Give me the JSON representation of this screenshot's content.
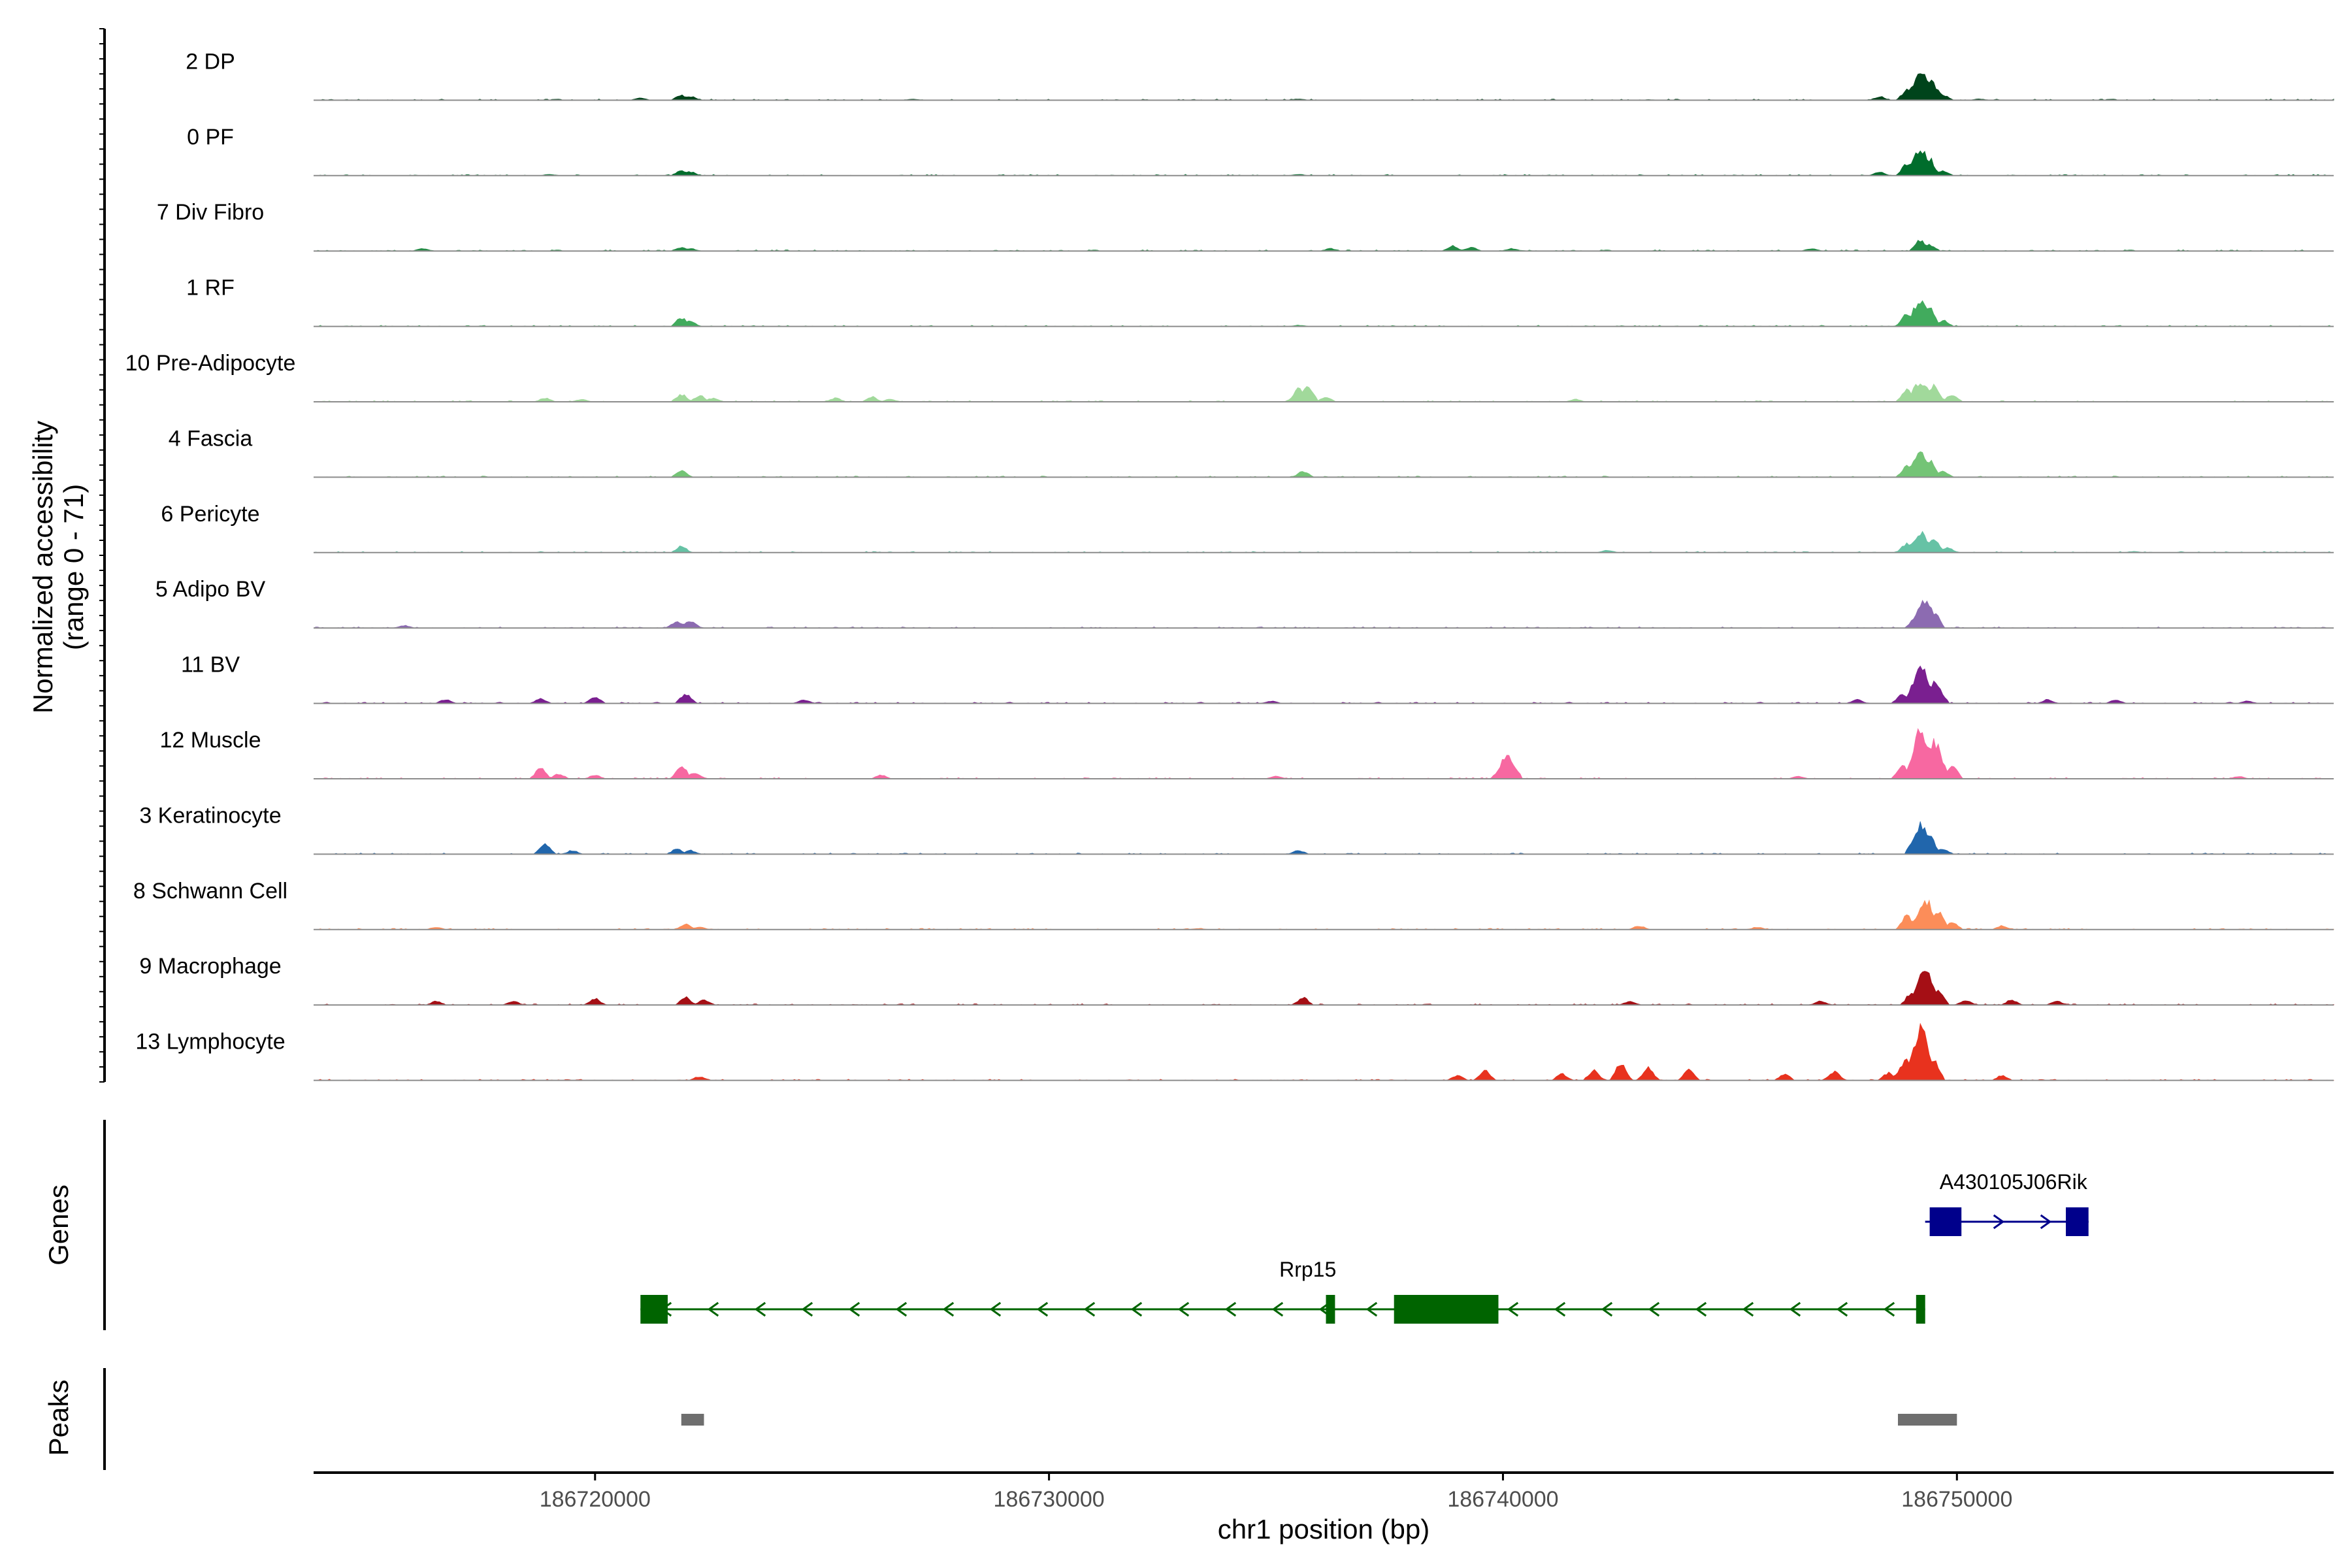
{
  "chart_data": {
    "type": "area",
    "title": "",
    "ylabel_line1": "Normalized accessibility",
    "ylabel_line2": "(range 0 - 71)",
    "genes_label": "Genes",
    "peaks_label": "Peaks",
    "xlabel": "chr1 position (bp)",
    "xlim": [
      186713800,
      186758300
    ],
    "ylim": [
      0,
      71
    ],
    "x_ticks": [
      "186720000",
      "186730000",
      "186740000",
      "186750000"
    ],
    "x_tick_values": [
      186720000,
      186730000,
      186740000,
      186750000
    ],
    "tracks": [
      {
        "name": "2 DP",
        "color": "#00441b",
        "peaks": [
          [
            186721000,
            2
          ],
          [
            186721900,
            4
          ],
          [
            186722100,
            3
          ],
          [
            186727000,
            1
          ],
          [
            186735500,
            1
          ],
          [
            186748300,
            3
          ],
          [
            186748900,
            8
          ],
          [
            186749200,
            22
          ],
          [
            186749400,
            16
          ],
          [
            186749700,
            4
          ],
          [
            186750500,
            1
          ]
        ]
      },
      {
        "name": "0 PF",
        "color": "#006d2c",
        "peaks": [
          [
            186719000,
            1
          ],
          [
            186721900,
            4
          ],
          [
            186722100,
            3
          ],
          [
            186735500,
            1
          ],
          [
            186748300,
            3
          ],
          [
            186748900,
            9
          ],
          [
            186749200,
            20
          ],
          [
            186749400,
            13
          ],
          [
            186749700,
            4
          ]
        ]
      },
      {
        "name": "7 Div Fibro",
        "color": "#238b45",
        "peaks": [
          [
            186716200,
            2
          ],
          [
            186721900,
            3
          ],
          [
            186722100,
            2
          ],
          [
            186736200,
            2
          ],
          [
            186738900,
            4
          ],
          [
            186739300,
            3
          ],
          [
            186740200,
            2
          ],
          [
            186746800,
            2
          ],
          [
            186749200,
            9
          ],
          [
            186749400,
            5
          ]
        ]
      },
      {
        "name": "1 RF",
        "color": "#41ab5d",
        "peaks": [
          [
            186721900,
            7
          ],
          [
            186722100,
            4
          ],
          [
            186735500,
            1
          ],
          [
            186748900,
            11
          ],
          [
            186749200,
            21
          ],
          [
            186749400,
            14
          ],
          [
            186749700,
            5
          ]
        ]
      },
      {
        "name": "10 Pre-Adipocyte",
        "color": "#a1d99b",
        "peaks": [
          [
            186718900,
            3
          ],
          [
            186719700,
            2
          ],
          [
            186721900,
            6
          ],
          [
            186722300,
            5
          ],
          [
            186722600,
            3
          ],
          [
            186725300,
            3
          ],
          [
            186726100,
            4
          ],
          [
            186726500,
            2
          ],
          [
            186735500,
            10
          ],
          [
            186735700,
            13
          ],
          [
            186736100,
            4
          ],
          [
            186741600,
            2
          ],
          [
            186748900,
            10
          ],
          [
            186749200,
            16
          ],
          [
            186749500,
            13
          ],
          [
            186749900,
            6
          ]
        ]
      },
      {
        "name": "4 Fascia",
        "color": "#74c476",
        "peaks": [
          [
            186721900,
            5
          ],
          [
            186735600,
            5
          ],
          [
            186748900,
            9
          ],
          [
            186749200,
            19
          ],
          [
            186749400,
            13
          ],
          [
            186749700,
            5
          ]
        ]
      },
      {
        "name": "6 Pericyte",
        "color": "#66c2a5",
        "peaks": [
          [
            186721900,
            5
          ],
          [
            186742300,
            2
          ],
          [
            186748900,
            7
          ],
          [
            186749200,
            16
          ],
          [
            186749500,
            11
          ],
          [
            186749800,
            4
          ],
          [
            186753900,
            1
          ]
        ]
      },
      {
        "name": "5 Adipo BV",
        "color": "#8c6bb1",
        "peaks": [
          [
            186715800,
            2
          ],
          [
            186721800,
            5
          ],
          [
            186722100,
            6
          ],
          [
            186749100,
            10
          ],
          [
            186749300,
            23
          ],
          [
            186749500,
            12
          ]
        ]
      },
      {
        "name": "11 BV",
        "color": "#7a1f90",
        "peaks": [
          [
            186716700,
            3
          ],
          [
            186718800,
            4
          ],
          [
            186720000,
            5
          ],
          [
            186722000,
            8
          ],
          [
            186724600,
            3
          ],
          [
            186734900,
            2
          ],
          [
            186747800,
            3
          ],
          [
            186748800,
            8
          ],
          [
            186749200,
            30
          ],
          [
            186749500,
            16
          ],
          [
            186752000,
            3
          ],
          [
            186753500,
            3
          ],
          [
            186756400,
            2
          ]
        ]
      },
      {
        "name": "12 Muscle",
        "color": "#f768a1",
        "peaks": [
          [
            186718800,
            8
          ],
          [
            186719200,
            4
          ],
          [
            186720000,
            3
          ],
          [
            186721900,
            11
          ],
          [
            186722200,
            5
          ],
          [
            186726300,
            3
          ],
          [
            186735000,
            2
          ],
          [
            186740100,
            18
          ],
          [
            186746500,
            2
          ],
          [
            186748800,
            12
          ],
          [
            186749200,
            40
          ],
          [
            186749500,
            30
          ],
          [
            186749900,
            10
          ],
          [
            186756200,
            2
          ]
        ]
      },
      {
        "name": "3 Keratinocyte",
        "color": "#2166ac",
        "peaks": [
          [
            186718900,
            8
          ],
          [
            186719500,
            3
          ],
          [
            186721800,
            4
          ],
          [
            186722100,
            3
          ],
          [
            186735500,
            3
          ],
          [
            186749200,
            23
          ],
          [
            186749400,
            15
          ],
          [
            186749700,
            4
          ]
        ]
      },
      {
        "name": "8 Schwann Cell",
        "color": "#fc8d59",
        "peaks": [
          [
            186716500,
            2
          ],
          [
            186722000,
            4
          ],
          [
            186722300,
            2
          ],
          [
            186733300,
            1
          ],
          [
            186743000,
            3
          ],
          [
            186745600,
            2
          ],
          [
            186748900,
            11
          ],
          [
            186749300,
            24
          ],
          [
            186749600,
            14
          ],
          [
            186749900,
            6
          ],
          [
            186751000,
            3
          ]
        ]
      },
      {
        "name": "9 Macrophage",
        "color": "#a50f15",
        "peaks": [
          [
            186716500,
            3
          ],
          [
            186718200,
            3
          ],
          [
            186720000,
            5
          ],
          [
            186722000,
            6
          ],
          [
            186722400,
            4
          ],
          [
            186735600,
            6
          ],
          [
            186742800,
            3
          ],
          [
            186747000,
            3
          ],
          [
            186749000,
            10
          ],
          [
            186749300,
            28
          ],
          [
            186749600,
            12
          ],
          [
            186750200,
            4
          ],
          [
            186751200,
            4
          ],
          [
            186752200,
            3
          ]
        ]
      },
      {
        "name": "13 Lymphocyte",
        "color": "#e8321e",
        "peaks": [
          [
            186722300,
            3
          ],
          [
            186739000,
            4
          ],
          [
            186739600,
            8
          ],
          [
            186741300,
            5
          ],
          [
            186742000,
            8
          ],
          [
            186742600,
            14
          ],
          [
            186743200,
            10
          ],
          [
            186744100,
            8
          ],
          [
            186746200,
            5
          ],
          [
            186747300,
            7
          ],
          [
            186748500,
            6
          ],
          [
            186748900,
            16
          ],
          [
            186749200,
            40
          ],
          [
            186749500,
            15
          ],
          [
            186751000,
            4
          ]
        ]
      }
    ],
    "genes": [
      {
        "name": "A430105J06Rik",
        "color": "#00008b",
        "strand": "+",
        "start": 186749300,
        "end": 186752900,
        "exons": [
          [
            186749400,
            186750100
          ],
          [
            186752400,
            186752900
          ]
        ]
      },
      {
        "name": "Rrp15",
        "color": "#006400",
        "strand": "-",
        "start": 186721000,
        "end": 186749300,
        "exons": [
          [
            186721000,
            186721600
          ],
          [
            186736100,
            186736300
          ],
          [
            186737600,
            186739900
          ],
          [
            186749100,
            186749300
          ]
        ]
      }
    ],
    "peak_regions": [
      [
        186721900,
        186722400
      ],
      [
        186748700,
        186750000
      ]
    ],
    "peaks_color": "#6e6e6e"
  }
}
